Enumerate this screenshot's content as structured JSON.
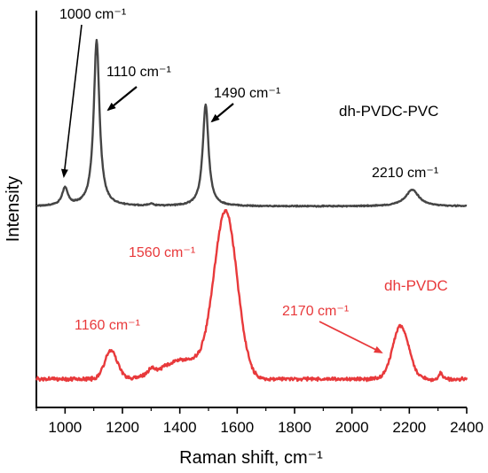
{
  "chart_data": {
    "type": "line",
    "title": "",
    "xlabel": "Raman shift, cm⁻¹",
    "ylabel": "Intensity",
    "xlim": [
      900,
      2400
    ],
    "x_ticks": [
      1000,
      1200,
      1400,
      1600,
      1800,
      2000,
      2200,
      2400
    ],
    "x_tick_labels": [
      "1000",
      "1200",
      "1400",
      "1600",
      "1800",
      "2000",
      "2200",
      "2400"
    ],
    "y_ticks_shown": false,
    "grid": false,
    "legend": "none",
    "series": [
      {
        "name": "dh-PVDC-PVC",
        "color": "#454545",
        "baseline": 0.78,
        "noise": 0.004,
        "peaks": [
          {
            "x": 1000,
            "height": 0.08,
            "width": 12
          },
          {
            "x": 1110,
            "height": 0.75,
            "width": 12
          },
          {
            "x": 1490,
            "height": 0.46,
            "width": 12
          },
          {
            "x": 1300,
            "height": 0.01,
            "width": 8
          },
          {
            "x": 2210,
            "height": 0.075,
            "width": 28
          }
        ]
      },
      {
        "name": "dh-PVDC",
        "color": "#e8393b",
        "baseline": 0.0,
        "noise": 0.012,
        "peaks": [
          {
            "x": 1160,
            "height": 0.13,
            "width": 22
          },
          {
            "x": 1560,
            "height": 0.74,
            "width": 40
          },
          {
            "x": 2170,
            "height": 0.24,
            "width": 28
          },
          {
            "x": 1300,
            "height": 0.02,
            "width": 10
          },
          {
            "x": 2310,
            "height": 0.03,
            "width": 5
          }
        ],
        "broad": [
          {
            "x": 1420,
            "height": 0.09,
            "width": 80
          }
        ]
      }
    ],
    "annotations": [
      {
        "text": "1000 cm⁻¹",
        "series": "dh-PVDC-PVC",
        "arrow": true,
        "target_x": 1000
      },
      {
        "text": "1110 cm⁻¹",
        "series": "dh-PVDC-PVC",
        "arrow": true,
        "target_x": 1110
      },
      {
        "text": "1490 cm⁻¹",
        "series": "dh-PVDC-PVC",
        "arrow": true,
        "target_x": 1490
      },
      {
        "text": "2210 cm⁻¹",
        "series": "dh-PVDC-PVC",
        "arrow": false,
        "target_x": 2210
      },
      {
        "text": "1160 cm⁻¹",
        "series": "dh-PVDC",
        "arrow": false,
        "target_x": 1160
      },
      {
        "text": "1560 cm⁻¹",
        "series": "dh-PVDC",
        "arrow": false,
        "target_x": 1560
      },
      {
        "text": "2170 cm⁻¹",
        "series": "dh-PVDC",
        "arrow": true,
        "target_x": 2170
      }
    ]
  }
}
